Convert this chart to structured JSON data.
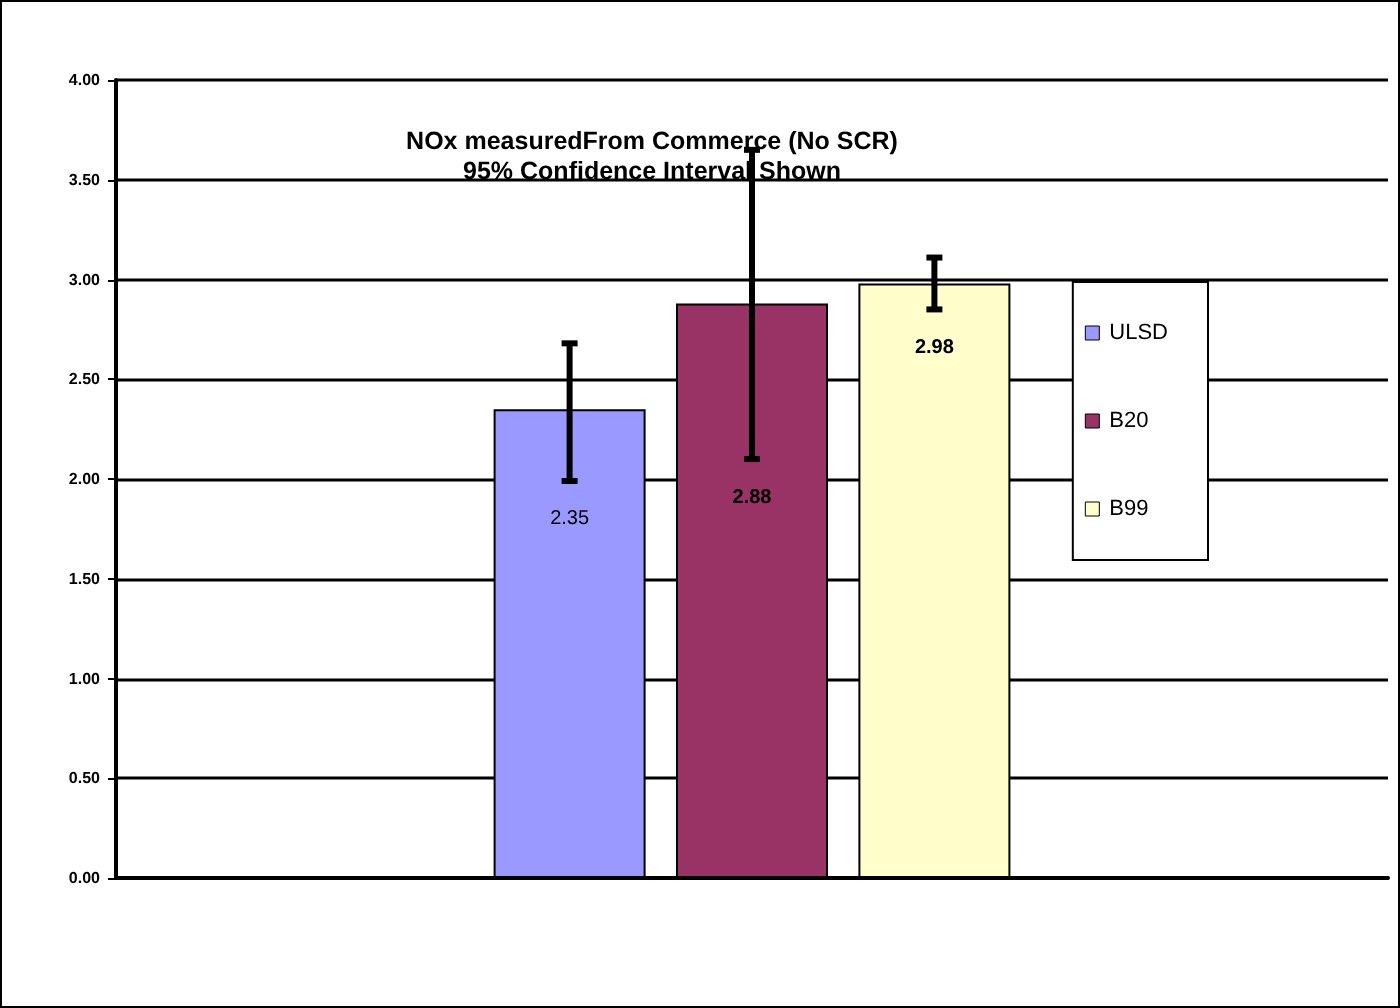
{
  "chart_data": {
    "type": "bar",
    "title": "NOx measuredFrom Commerce (No SCR)",
    "subtitle": "95% Confidence Interval Shown",
    "categories": [
      null
    ],
    "series": [
      {
        "name": "ULSD",
        "color": "#9999ff",
        "values": [
          2.35
        ],
        "errors": [
          [
            1.99,
            2.68
          ]
        ]
      },
      {
        "name": "B20",
        "color": "#993366",
        "values": [
          2.88
        ],
        "errors": [
          [
            2.1,
            3.65
          ]
        ]
      },
      {
        "name": "B99",
        "color": "#ffffcc",
        "values": [
          2.98
        ],
        "errors": [
          [
            2.85,
            3.11
          ]
        ]
      }
    ],
    "ylim": [
      0,
      4
    ],
    "yticks": [
      {
        "value": 0,
        "label": "0.00"
      },
      {
        "value": 0.5,
        "label": "0.50"
      },
      {
        "value": 1,
        "label": "1.00"
      },
      {
        "value": 1.5,
        "label": "1.50"
      },
      {
        "value": 2,
        "label": "2.00"
      },
      {
        "value": 2.5,
        "label": "2.50"
      },
      {
        "value": 3,
        "label": "3.00"
      },
      {
        "value": 3.5,
        "label": "3.50"
      },
      {
        "value": 4,
        "label": "4.00"
      }
    ],
    "grid": "y",
    "legend": "right",
    "data_labels": true
  }
}
